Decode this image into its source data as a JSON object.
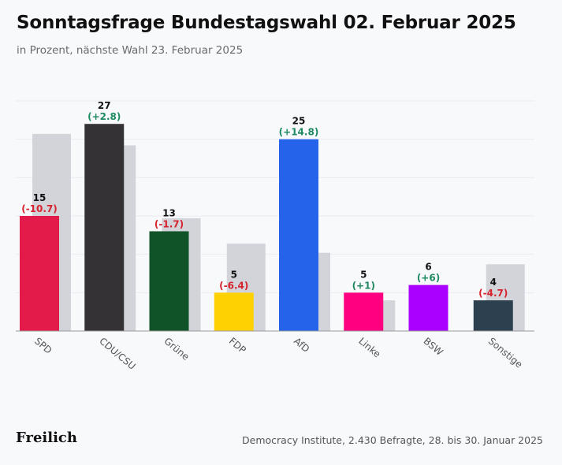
{
  "header": {
    "title": "Sonntagsfrage Bundestagswahl 02. Februar 2025",
    "subtitle": "in Prozent, nächste Wahl 23. Februar 2025"
  },
  "footer": {
    "logo": "Freilich",
    "source": "Democracy Institute, 2.430 Befragte, 28. bis 30. Januar 2025"
  },
  "chart_data": {
    "type": "bar",
    "categories": [
      "SPD",
      "CDU/CSU",
      "Grüne",
      "FDP",
      "AfD",
      "Linke",
      "BSW",
      "Sonstige"
    ],
    "values": [
      15,
      27,
      13,
      5,
      25,
      5,
      6,
      4
    ],
    "change_labels": [
      "(-10.7)",
      "(+2.8)",
      "(-1.7)",
      "(-6.4)",
      "(+14.8)",
      "(+1)",
      "(+6)",
      "(-4.7)"
    ],
    "previous_values": [
      25.7,
      24.2,
      14.7,
      11.4,
      10.2,
      4.0,
      0,
      8.7
    ],
    "colors": [
      "#e31b4a",
      "#353235",
      "#115329",
      "#fed102",
      "#2463ea",
      "#ff0080",
      "#a900ff",
      "#2c4050"
    ],
    "previous_color": "#d2d4da",
    "positive_color": "#1f8a62",
    "negative_color": "#d6232d",
    "ylim": [
      0,
      30
    ],
    "grid": true
  }
}
